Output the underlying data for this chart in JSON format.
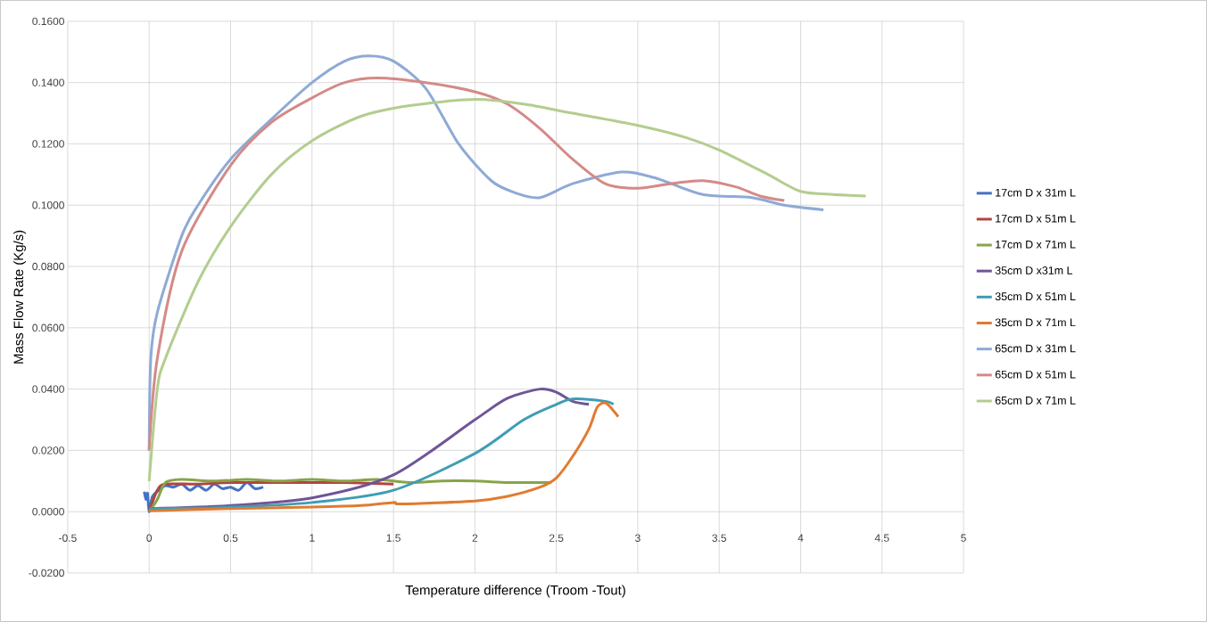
{
  "chart_data": {
    "type": "line",
    "xlabel": "Temperature difference (Troom -Tout)",
    "ylabel": "Mass Flow Rate (Kg/s)",
    "xlim": [
      -0.5,
      5
    ],
    "xticks": [
      -0.5,
      0,
      0.5,
      1,
      1.5,
      2,
      2.5,
      3,
      3.5,
      4,
      4.5,
      5
    ],
    "ylim": [
      -0.02,
      0.16
    ],
    "yticks": [
      {
        "value": -0.02,
        "label": "-0.0200"
      },
      {
        "value": 0,
        "label": "0.0000"
      },
      {
        "value": 0.02,
        "label": "0.0200"
      },
      {
        "value": 0.04,
        "label": "0.0400"
      },
      {
        "value": 0.06,
        "label": "0.0600"
      },
      {
        "value": 0.08,
        "label": "0.0800"
      },
      {
        "value": 0.1,
        "label": "0.1000"
      },
      {
        "value": 0.12,
        "label": "0.1200"
      },
      {
        "value": 0.14,
        "label": "0.1400"
      },
      {
        "value": 0.16,
        "label": "0.1600"
      }
    ],
    "grid": true,
    "legend": "right",
    "marker": "none",
    "line_style": "solid",
    "series": [
      {
        "name": "17cm D x 31m L",
        "color": "#4472c4",
        "x": [
          -0.03,
          -0.02,
          -0.01,
          0,
          0.02,
          0.06,
          0.1,
          0.15,
          0.2,
          0.25,
          0.3,
          0.35,
          0.4,
          0.45,
          0.5,
          0.55,
          0.6,
          0.65,
          0.7
        ],
        "values": [
          0.0065,
          0.004,
          0.006,
          0.0,
          0.005,
          0.007,
          0.0085,
          0.008,
          0.009,
          0.007,
          0.0085,
          0.007,
          0.009,
          0.0075,
          0.008,
          0.007,
          0.0095,
          0.0075,
          0.008
        ]
      },
      {
        "name": "17cm D x 51m L",
        "color": "#b3443f",
        "x": [
          0,
          0.05,
          0.1,
          0.3,
          0.5,
          0.8,
          1,
          1.2,
          1.5
        ],
        "values": [
          0.0,
          0.007,
          0.009,
          0.009,
          0.0095,
          0.0095,
          0.0095,
          0.0095,
          0.009
        ]
      },
      {
        "name": "17cm D x 71m L",
        "color": "#86a44a",
        "x": [
          0,
          0.05,
          0.1,
          0.2,
          0.4,
          0.6,
          0.8,
          1,
          1.2,
          1.4,
          1.6,
          1.8,
          2,
          2.2,
          2.4,
          2.47
        ],
        "values": [
          0.0,
          0.004,
          0.0095,
          0.0105,
          0.01,
          0.0105,
          0.01,
          0.0105,
          0.01,
          0.0105,
          0.0095,
          0.01,
          0.01,
          0.0095,
          0.0095,
          0.0095
        ]
      },
      {
        "name": "35cm D x31m L",
        "color": "#6f5597",
        "x": [
          0,
          0.5,
          1,
          1.5,
          2,
          2.2,
          2.4,
          2.5,
          2.6,
          2.7
        ],
        "values": [
          0.001,
          0.002,
          0.0045,
          0.012,
          0.03,
          0.037,
          0.04,
          0.039,
          0.036,
          0.035
        ]
      },
      {
        "name": "35cm D x 51m L",
        "color": "#3f9cb5",
        "x": [
          0,
          0.5,
          1,
          1.5,
          2,
          2.3,
          2.5,
          2.6,
          2.8,
          2.85
        ],
        "values": [
          0.001,
          0.0015,
          0.003,
          0.007,
          0.019,
          0.03,
          0.035,
          0.0368,
          0.036,
          0.035
        ]
      },
      {
        "name": "35cm D x 71m L",
        "color": "#e07b31",
        "x": [
          0,
          0.5,
          1,
          1.3,
          1.5,
          1.55,
          2,
          2.2,
          2.4,
          2.5,
          2.6,
          2.7,
          2.75,
          2.8,
          2.85,
          2.88
        ],
        "values": [
          0.0003,
          0.001,
          0.0015,
          0.002,
          0.003,
          0.0025,
          0.0035,
          0.005,
          0.008,
          0.011,
          0.018,
          0.027,
          0.034,
          0.0355,
          0.033,
          0.031
        ]
      },
      {
        "name": "65cm D x 31m L",
        "color": "#8eaad6",
        "x": [
          0,
          0.01,
          0.05,
          0.2,
          0.3,
          0.5,
          0.75,
          1,
          1.2,
          1.35,
          1.5,
          1.7,
          1.9,
          2.1,
          2.25,
          2.4,
          2.6,
          2.9,
          3.1,
          3.4,
          3.7,
          3.9,
          4.14
        ],
        "values": [
          0.02,
          0.05,
          0.065,
          0.09,
          0.1,
          0.115,
          0.128,
          0.14,
          0.147,
          0.1487,
          0.147,
          0.138,
          0.12,
          0.108,
          0.104,
          0.1025,
          0.107,
          0.1108,
          0.109,
          0.1035,
          0.1025,
          0.1,
          0.0985
        ]
      },
      {
        "name": "65cm D x 51m L",
        "color": "#d48a87",
        "x": [
          0,
          0.05,
          0.2,
          0.5,
          0.75,
          1,
          1.2,
          1.4,
          1.7,
          2,
          2.2,
          2.4,
          2.6,
          2.8,
          3,
          3.2,
          3.4,
          3.6,
          3.75,
          3.9
        ],
        "values": [
          0.02,
          0.05,
          0.085,
          0.113,
          0.127,
          0.135,
          0.14,
          0.1415,
          0.14,
          0.137,
          0.133,
          0.125,
          0.115,
          0.107,
          0.1055,
          0.107,
          0.108,
          0.106,
          0.103,
          0.1015
        ]
      },
      {
        "name": "65cm D x 71m L",
        "color": "#b3cd8f",
        "x": [
          0,
          0.05,
          0.1,
          0.3,
          0.5,
          0.75,
          1,
          1.3,
          1.6,
          2,
          2.3,
          2.6,
          3,
          3.3,
          3.5,
          3.8,
          4,
          4.2,
          4.4
        ],
        "values": [
          0.01,
          0.04,
          0.05,
          0.075,
          0.093,
          0.11,
          0.121,
          0.129,
          0.1325,
          0.1345,
          0.133,
          0.13,
          0.126,
          0.122,
          0.118,
          0.11,
          0.1045,
          0.1035,
          0.103
        ]
      }
    ]
  }
}
